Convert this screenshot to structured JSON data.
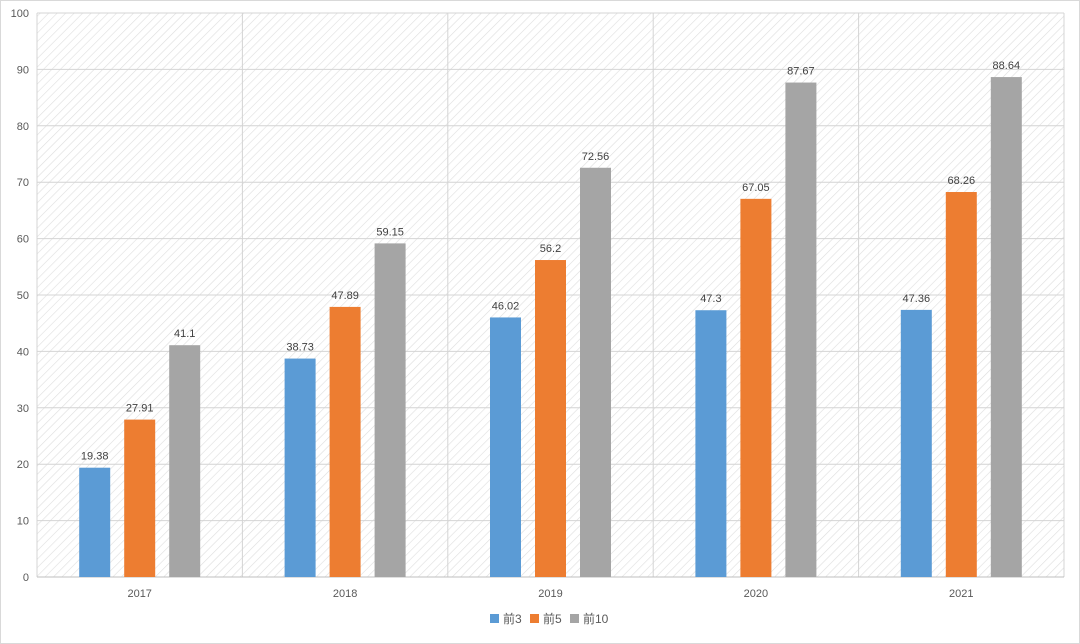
{
  "chart_data": {
    "type": "bar",
    "title": "",
    "xlabel": "",
    "ylabel": "",
    "categories": [
      "2017",
      "2018",
      "2019",
      "2020",
      "2021"
    ],
    "series": [
      {
        "name": "前3",
        "color": "#5b9bd5",
        "values": [
          19.38,
          38.73,
          46.02,
          47.3,
          47.36
        ]
      },
      {
        "name": "前5",
        "color": "#ed7d31",
        "values": [
          27.91,
          47.89,
          56.2,
          67.05,
          68.26
        ]
      },
      {
        "name": "前10",
        "color": "#a5a5a5",
        "values": [
          41.1,
          59.15,
          72.56,
          87.67,
          88.64
        ]
      }
    ],
    "ylim": [
      0,
      100
    ],
    "yticks": [
      0,
      10,
      20,
      30,
      40,
      50,
      60,
      70,
      80,
      90,
      100
    ],
    "grid": true,
    "legend_position": "bottom",
    "data_labels": true
  }
}
